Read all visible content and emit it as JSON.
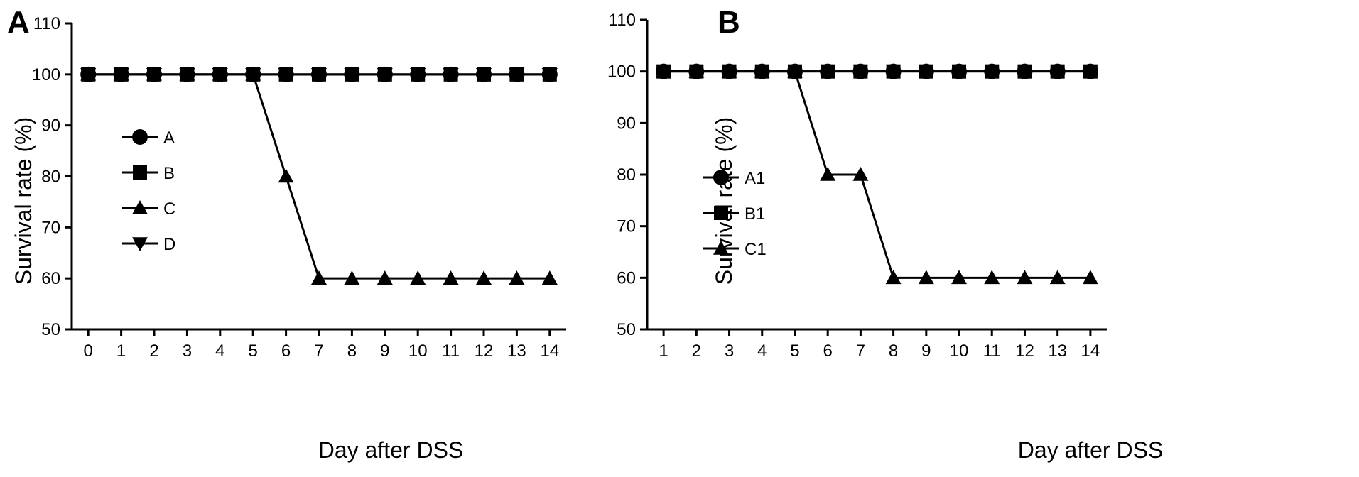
{
  "chart_data": [
    {
      "panel_label": "A",
      "type": "line",
      "xlabel": "Day after DSS",
      "ylabel": "Survival rate (%)",
      "x": [
        0,
        1,
        2,
        3,
        4,
        5,
        6,
        7,
        8,
        9,
        10,
        11,
        12,
        13,
        14
      ],
      "xlim": [
        -0.5,
        14.5
      ],
      "ylim": [
        50,
        110
      ],
      "yticks": [
        50,
        60,
        70,
        80,
        90,
        100,
        110
      ],
      "grid": false,
      "legend_position": "left",
      "series": [
        {
          "name": "A",
          "marker": "circle",
          "values": [
            100,
            100,
            100,
            100,
            100,
            100,
            100,
            100,
            100,
            100,
            100,
            100,
            100,
            100,
            100
          ]
        },
        {
          "name": "B",
          "marker": "square",
          "values": [
            100,
            100,
            100,
            100,
            100,
            100,
            100,
            100,
            100,
            100,
            100,
            100,
            100,
            100,
            100
          ]
        },
        {
          "name": "C",
          "marker": "triangle-up",
          "values": [
            100,
            100,
            100,
            100,
            100,
            100,
            80,
            60,
            60,
            60,
            60,
            60,
            60,
            60,
            60
          ]
        },
        {
          "name": "D",
          "marker": "triangle-down",
          "values": [
            100,
            100,
            100,
            100,
            100,
            100,
            100,
            100,
            100,
            100,
            100,
            100,
            100,
            100,
            100
          ]
        }
      ]
    },
    {
      "panel_label": "B",
      "type": "line",
      "xlabel": "Day after DSS",
      "ylabel": "Survival rate (%)",
      "x": [
        1,
        2,
        3,
        4,
        5,
        6,
        7,
        8,
        9,
        10,
        11,
        12,
        13,
        14
      ],
      "xlim": [
        0.5,
        14.5
      ],
      "ylim": [
        50,
        110
      ],
      "yticks": [
        50,
        60,
        70,
        80,
        90,
        100,
        110
      ],
      "grid": false,
      "legend_position": "left",
      "series": [
        {
          "name": "A1",
          "marker": "circle",
          "values": [
            100,
            100,
            100,
            100,
            100,
            100,
            100,
            100,
            100,
            100,
            100,
            100,
            100,
            100
          ]
        },
        {
          "name": "B1",
          "marker": "square",
          "values": [
            100,
            100,
            100,
            100,
            100,
            100,
            100,
            100,
            100,
            100,
            100,
            100,
            100,
            100
          ]
        },
        {
          "name": "C1",
          "marker": "triangle-up",
          "values": [
            100,
            100,
            100,
            100,
            100,
            80,
            80,
            60,
            60,
            60,
            60,
            60,
            60,
            60
          ]
        }
      ]
    }
  ]
}
